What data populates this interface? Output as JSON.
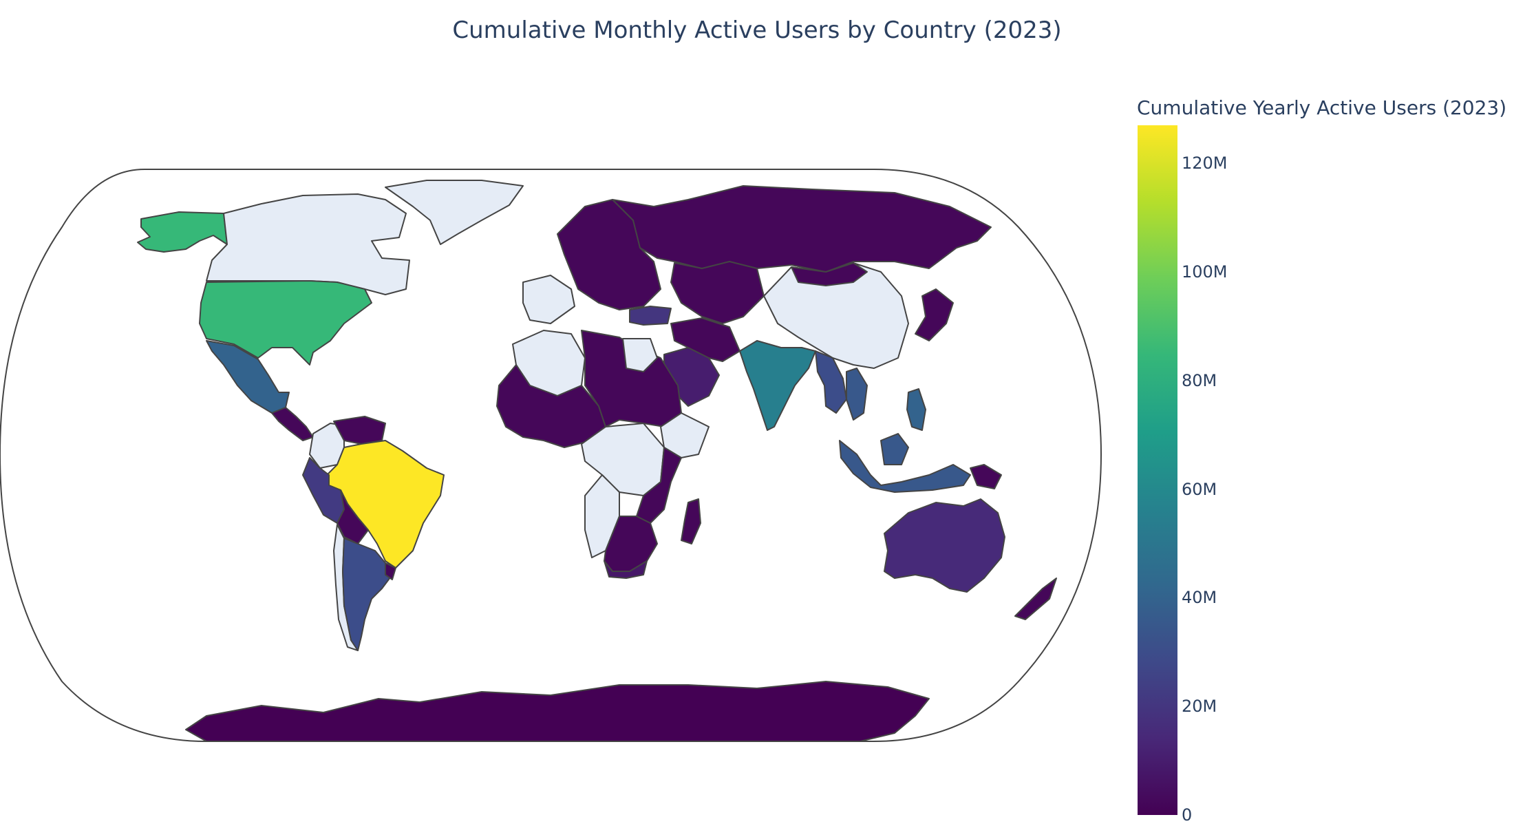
{
  "title": "Cumulative Monthly Active Users by Country (2023)",
  "colorbar": {
    "title": "Cumulative Yearly Active Users (2023)",
    "min": 0,
    "max": 127000000,
    "ticks": [
      {
        "value": 0,
        "label": "0"
      },
      {
        "value": 20000000,
        "label": "20M"
      },
      {
        "value": 40000000,
        "label": "40M"
      },
      {
        "value": 60000000,
        "label": "60M"
      },
      {
        "value": 80000000,
        "label": "80M"
      },
      {
        "value": 100000000,
        "label": "100M"
      },
      {
        "value": 120000000,
        "label": "120M"
      }
    ],
    "colorscale": [
      "#440154",
      "#482878",
      "#3e4989",
      "#31688e",
      "#26828e",
      "#1f9e89",
      "#35b779",
      "#6ece58",
      "#b5de2b",
      "#fde725"
    ]
  },
  "map": {
    "projection": "natural-earth",
    "no_data_color": "#e5ecf6",
    "border_color": "#444444",
    "land_colors_by_value": "viridis"
  },
  "chart_data": {
    "type": "choropleth",
    "value_unit": "users",
    "regions": [
      {
        "region": "Brazil",
        "value": 127000000
      },
      {
        "region": "United States",
        "value": 85000000
      },
      {
        "region": "Alaska (United States)",
        "value": 85000000
      },
      {
        "region": "India",
        "value": 55000000
      },
      {
        "region": "Mexico",
        "value": 40000000
      },
      {
        "region": "Argentina",
        "value": 30000000
      },
      {
        "region": "Indonesia",
        "value": 35000000
      },
      {
        "region": "Thailand",
        "value": 30000000
      },
      {
        "region": "Vietnam",
        "value": 35000000
      },
      {
        "region": "Philippines",
        "value": 40000000
      },
      {
        "region": "Malaysia",
        "value": 35000000
      },
      {
        "region": "Peru",
        "value": 22000000
      },
      {
        "region": "Turkey",
        "value": 20000000
      },
      {
        "region": "Australia",
        "value": 15000000
      },
      {
        "region": "Saudi Arabia",
        "value": 10000000
      },
      {
        "region": "South Africa",
        "value": 8000000
      },
      {
        "region": "Russia",
        "value": 2000000
      },
      {
        "region": "Antarctica",
        "value": 0
      }
    ],
    "no_data_regions": [
      "Canada",
      "Greenland",
      "China",
      "Algeria",
      "Egypt",
      "DR Congo",
      "Ethiopia",
      "Angola",
      "Colombia",
      "Chile",
      "France",
      "Spain"
    ]
  }
}
